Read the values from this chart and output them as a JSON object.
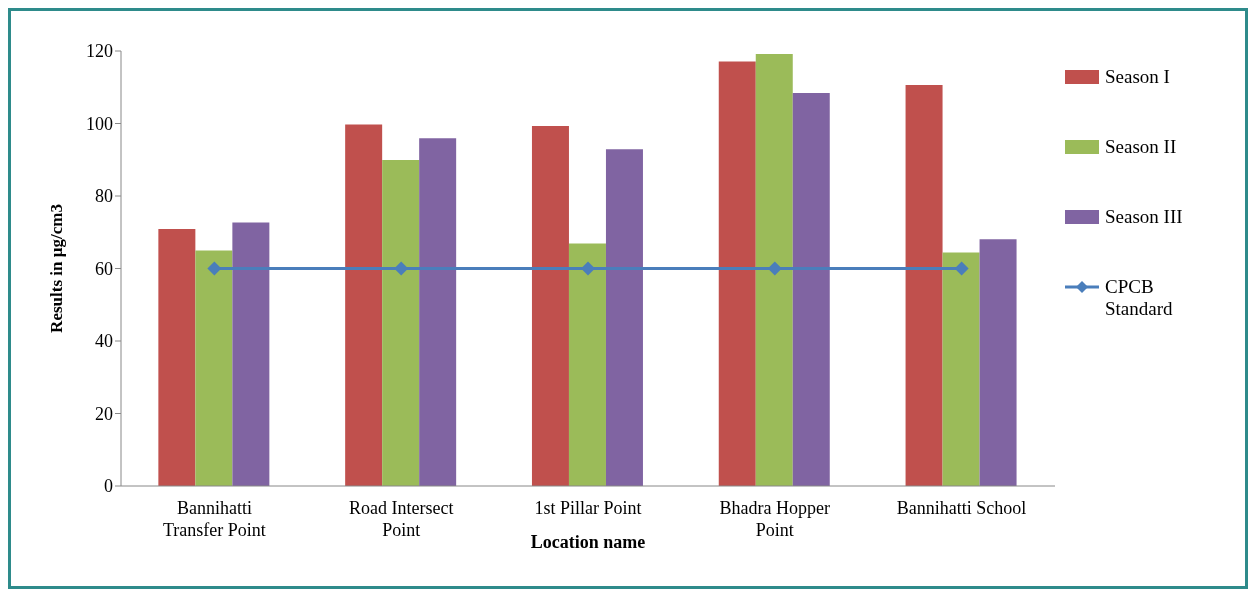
{
  "chart_data": {
    "type": "bar",
    "xlabel": "Location name",
    "ylabel": "Results in  µg/cm3",
    "categories": [
      "Bannihatti Transfer Point",
      "Road Intersect Point",
      "1st Pillar Point",
      "Bhadra Hopper Point",
      "Bannihatti School"
    ],
    "series": [
      {
        "name": "Season I",
        "color": "#c0504d",
        "values": [
          70.9,
          99.7,
          99.3,
          117.1,
          110.6
        ]
      },
      {
        "name": "Season II",
        "color": "#9bbb59",
        "values": [
          65.0,
          89.9,
          66.9,
          119.2,
          64.4
        ]
      },
      {
        "name": "Season III",
        "color": "#8064a2",
        "values": [
          72.7,
          95.9,
          92.9,
          108.4,
          68.1
        ]
      },
      {
        "name": "CPCB Standard",
        "type": "line",
        "color": "#4a7ebb",
        "values": [
          60,
          60,
          60,
          60,
          60
        ]
      }
    ],
    "ylim": [
      0,
      120
    ],
    "yticks": [
      0,
      20,
      40,
      60,
      80,
      100,
      120
    ],
    "grid": false,
    "legend": "right",
    "marker": "diamond",
    "line_style": "solid"
  }
}
